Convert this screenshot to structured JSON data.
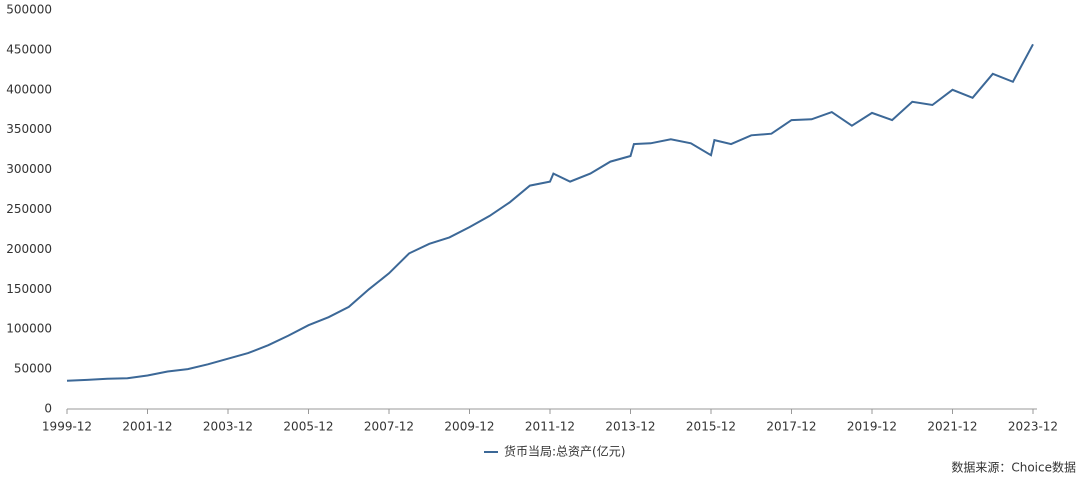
{
  "chart_data": {
    "type": "line",
    "x": [
      "1999-12",
      "2000-06",
      "2000-12",
      "2001-06",
      "2001-12",
      "2002-06",
      "2002-12",
      "2003-06",
      "2003-12",
      "2004-06",
      "2004-12",
      "2005-06",
      "2005-12",
      "2006-06",
      "2006-12",
      "2007-06",
      "2007-12",
      "2008-06",
      "2008-12",
      "2009-06",
      "2009-12",
      "2010-06",
      "2010-12",
      "2011-06",
      "2011-12",
      "2012-01",
      "2012-06",
      "2012-12",
      "2013-06",
      "2013-12",
      "2014-01",
      "2014-06",
      "2014-12",
      "2015-06",
      "2015-12",
      "2016-01",
      "2016-06",
      "2016-12",
      "2017-06",
      "2017-12",
      "2018-06",
      "2018-12",
      "2019-06",
      "2019-12",
      "2020-06",
      "2020-12",
      "2021-06",
      "2021-12",
      "2022-06",
      "2022-12",
      "2023-06",
      "2023-12"
    ],
    "series": [
      {
        "name": "货币当局:总资产(亿元)",
        "color": "#3c6897",
        "values": [
          35500,
          36500,
          38000,
          38500,
          42000,
          47000,
          50000,
          56000,
          63000,
          70000,
          80000,
          92000,
          105000,
          115000,
          128000,
          150000,
          170000,
          195000,
          207000,
          215000,
          228000,
          242000,
          259000,
          280000,
          285000,
          295000,
          285000,
          295000,
          310000,
          317000,
          332000,
          333000,
          338000,
          333000,
          318000,
          337000,
          332000,
          343000,
          345000,
          362000,
          363000,
          372000,
          355000,
          371000,
          362000,
          385000,
          381000,
          400000,
          390000,
          420000,
          410000,
          457000
        ]
      }
    ],
    "xlim": [
      "1999-12",
      "2023-12"
    ],
    "xticks": [
      "1999-12",
      "2001-12",
      "2003-12",
      "2005-12",
      "2007-12",
      "2009-12",
      "2011-12",
      "2013-12",
      "2015-12",
      "2017-12",
      "2019-12",
      "2021-12",
      "2023-12"
    ],
    "ylim": [
      0,
      500000
    ],
    "yticks": [
      0,
      50000,
      100000,
      150000,
      200000,
      250000,
      300000,
      350000,
      400000,
      450000,
      500000
    ],
    "grid": false,
    "source": "数据来源：Choice数据"
  }
}
